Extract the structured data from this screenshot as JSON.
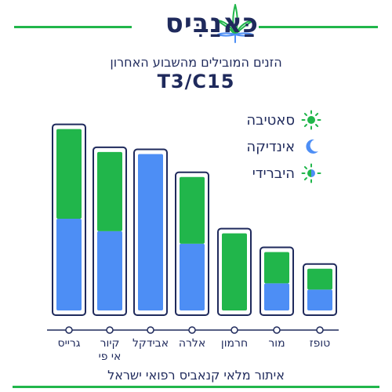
{
  "header": {
    "brand": "כַּאנַבִּיס",
    "subtitle": "הזנים המובילים מהשבוע האחרון",
    "strain_code": "T3/C15",
    "logo_icon": "cannabis-leaf-icon"
  },
  "legend": {
    "items": [
      {
        "label": "סאטיבה",
        "icon": "sun-icon",
        "color": "#21b64b"
      },
      {
        "label": "אינדיקה",
        "icon": "moon-icon",
        "color": "#4d8ef5"
      },
      {
        "label": "היברידי",
        "icon": "sun-moon-icon",
        "color": "#21b64b"
      }
    ]
  },
  "footer": {
    "text": "איתור מלאי קנאביס רפואי ישראל"
  },
  "colors": {
    "sativa": "#21b64b",
    "indica": "#4d8ef5",
    "outline": "#1f2a5c",
    "accent_line": "#21b64b"
  },
  "chart_data": {
    "type": "bar",
    "stacked": true,
    "categories": [
      "גרייס",
      "קיור אי פי",
      "אבידקל",
      "אלרה",
      "חרמון",
      "מור",
      "טופז"
    ],
    "series": [
      {
        "name": "אינדיקה",
        "values": [
          44,
          38,
          75,
          32,
          0,
          13,
          10
        ]
      },
      {
        "name": "סאטיבה",
        "values": [
          43,
          38,
          0,
          32,
          37,
          15,
          10
        ]
      }
    ],
    "ylim": [
      0,
      100
    ],
    "grid": false,
    "legend_position": "top-right"
  }
}
